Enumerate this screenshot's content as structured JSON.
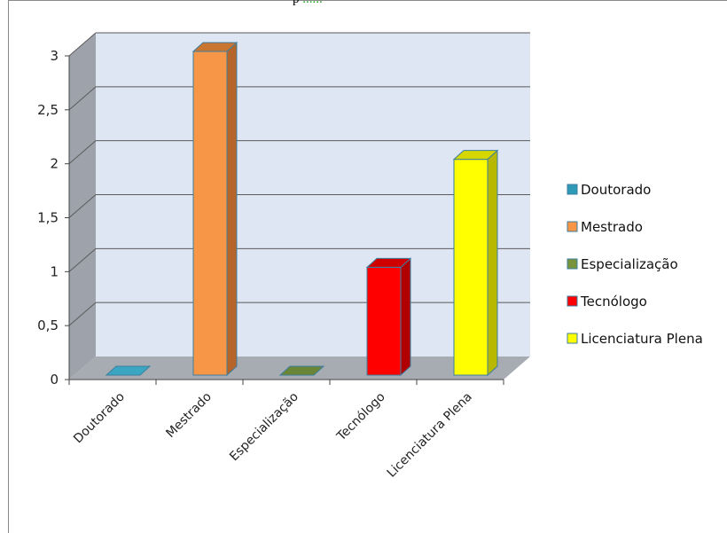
{
  "page": {
    "top_text_fragment": "p",
    "top_text_fragment_dots": "......"
  },
  "chart_data": {
    "type": "bar",
    "style": "3d-column",
    "categories": [
      "Doutorado",
      "Mestrado",
      "Especialização",
      "Tecnólogo",
      "Licenciatura Plena"
    ],
    "values": [
      0,
      3,
      0,
      1,
      2
    ],
    "colors": [
      "#2e9ab8",
      "#f79646",
      "#77933c",
      "#ff0000",
      "#ffff00"
    ],
    "side_colors": [
      "#1f6f85",
      "#b5652a",
      "#4f6127",
      "#b00000",
      "#b8b800"
    ],
    "top_colors": [
      "#3aa6c2",
      "#c97633",
      "#6a8535",
      "#d00000",
      "#d6d600"
    ],
    "ylim": [
      0,
      3
    ],
    "yticks": [
      "0",
      "0,5",
      "1",
      "1,5",
      "2",
      "2,5",
      "3"
    ],
    "grid": true,
    "legend": {
      "placement": "right",
      "entries": [
        "Doutorado",
        "Mestrado",
        "Especialização",
        "Tecnólogo",
        "Licenciatura Plena"
      ]
    },
    "title": "",
    "xlabel": "",
    "ylabel": ""
  }
}
